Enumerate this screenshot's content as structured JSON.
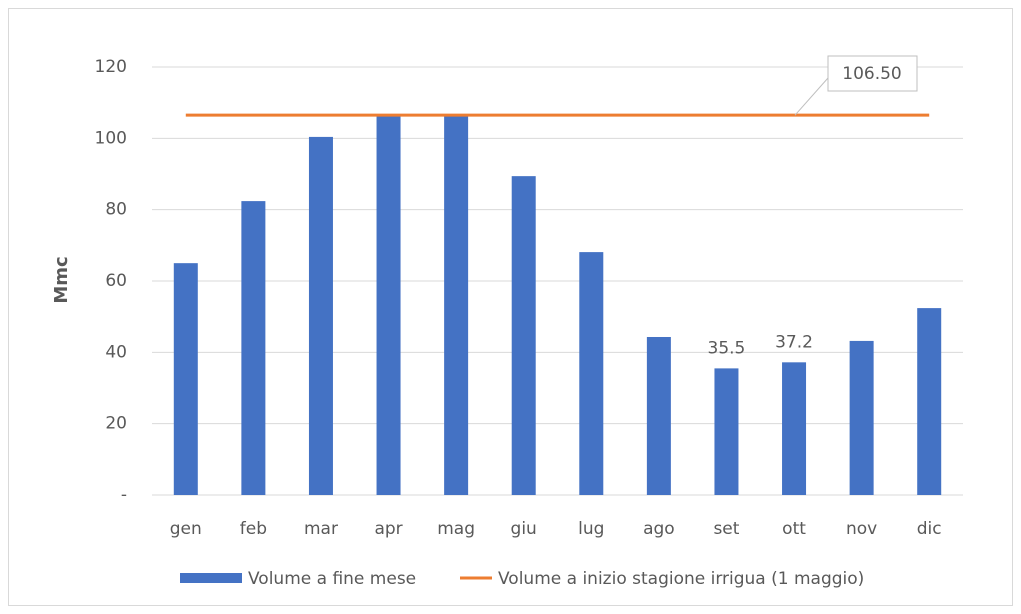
{
  "chart_data": {
    "type": "bar",
    "categories": [
      "gen",
      "feb",
      "mar",
      "apr",
      "mag",
      "giu",
      "lug",
      "ago",
      "set",
      "ott",
      "nov",
      "dic"
    ],
    "series": [
      {
        "name": "Volume a fine mese",
        "color": "#4472c4",
        "values": [
          65.0,
          82.4,
          100.4,
          106.5,
          106.5,
          89.4,
          68.1,
          44.3,
          35.5,
          37.2,
          43.2,
          52.4
        ]
      },
      {
        "name": "Volume a inizio stagione irrigua (1 maggio)",
        "color": "#ed7d31",
        "type": "line",
        "value": 106.5,
        "value_label": "106.50"
      }
    ],
    "labeled_points": [
      8,
      9
    ],
    "y_label": "Mmc",
    "ylim": [
      0,
      120
    ],
    "yticks": [
      {
        "value": 0,
        "label": "-"
      },
      20,
      40,
      60,
      80,
      100,
      120
    ],
    "grid": true,
    "legend": "bottom"
  }
}
